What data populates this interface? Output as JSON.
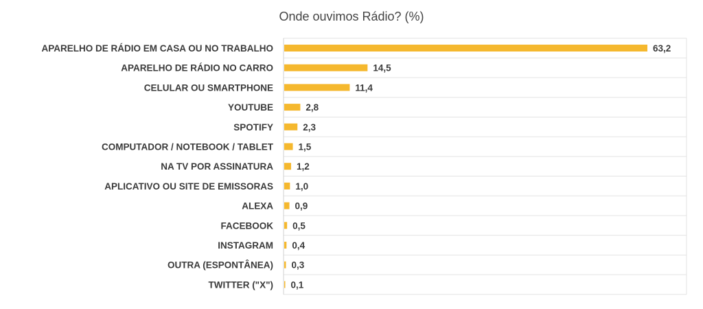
{
  "chart_data": {
    "type": "bar",
    "orientation": "horizontal",
    "title": "Onde ouvimos Rádio? (%)",
    "xlabel": "",
    "ylabel": "",
    "categories": [
      "APARELHO DE RÁDIO EM CASA OU NO TRABALHO",
      "APARELHO DE RÁDIO NO CARRO",
      "CELULAR OU SMARTPHONE",
      "YOUTUBE",
      "SPOTIFY",
      "COMPUTADOR / NOTEBOOK / TABLET",
      "NA TV POR ASSINATURA",
      "APLICATIVO OU SITE DE EMISSORAS",
      "ALEXA",
      "FACEBOOK",
      "INSTAGRAM",
      "OUTRA (ESPONTÂNEA)",
      "TWITTER (\"X\")"
    ],
    "values": [
      63.2,
      14.5,
      11.4,
      2.8,
      2.3,
      1.5,
      1.2,
      1.0,
      0.9,
      0.5,
      0.4,
      0.3,
      0.1
    ],
    "value_labels": [
      "63,2",
      "14,5",
      "11,4",
      "2,8",
      "2,3",
      "1,5",
      "1,2",
      "1,0",
      "0,9",
      "0,5",
      "0,4",
      "0,3",
      "0,1"
    ],
    "xlim": [
      0,
      70
    ],
    "grid": "horizontal",
    "legend": "none",
    "bar_color": "#F5B82E"
  }
}
